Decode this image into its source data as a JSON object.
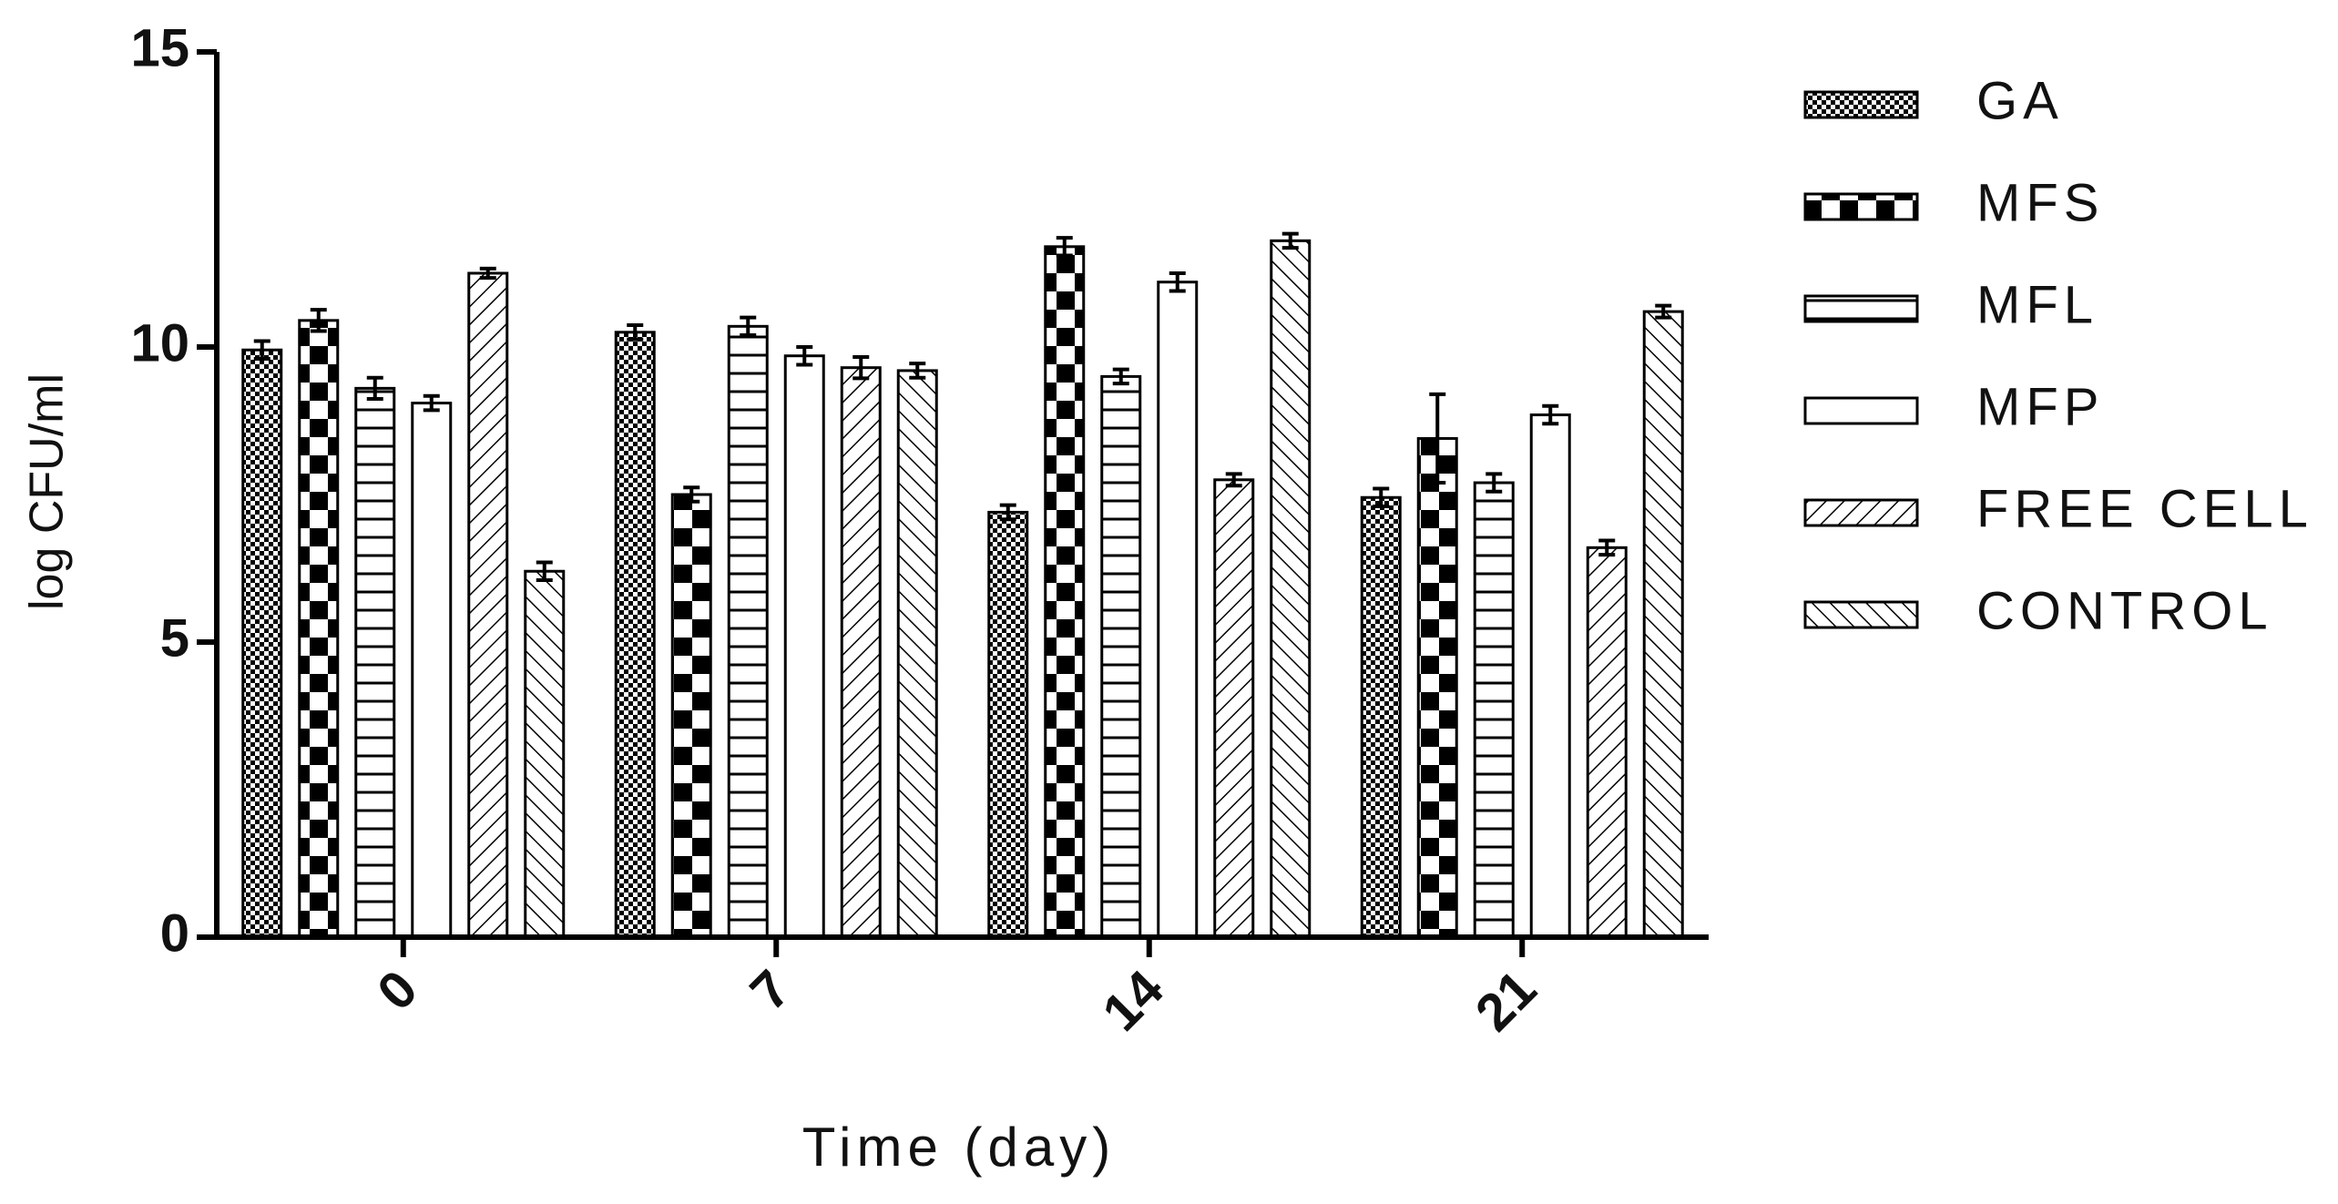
{
  "chart_data": {
    "type": "bar",
    "x_label": "Time (day)",
    "y_label": "log CFU/ml",
    "categories": [
      "0",
      "7",
      "14",
      "21"
    ],
    "series": [
      {
        "name": "GA",
        "values": [
          9.95,
          10.25,
          7.2,
          7.45
        ],
        "errors": [
          0.15,
          0.12,
          0.12,
          0.15
        ]
      },
      {
        "name": "MFS",
        "values": [
          10.45,
          7.5,
          11.7,
          8.45
        ],
        "errors": [
          0.18,
          0.12,
          0.15,
          0.75
        ]
      },
      {
        "name": "MFL",
        "values": [
          9.3,
          10.35,
          9.5,
          7.7
        ],
        "errors": [
          0.18,
          0.15,
          0.12,
          0.15
        ]
      },
      {
        "name": "MFP",
        "values": [
          9.05,
          9.85,
          11.1,
          8.85
        ],
        "errors": [
          0.12,
          0.15,
          0.15,
          0.15
        ]
      },
      {
        "name": "FREE CELL",
        "values": [
          11.25,
          9.65,
          7.75,
          6.6
        ],
        "errors": [
          0.08,
          0.18,
          0.1,
          0.12
        ]
      },
      {
        "name": "CONTROL",
        "values": [
          6.2,
          9.6,
          11.8,
          10.6
        ],
        "errors": [
          0.15,
          0.12,
          0.12,
          0.1
        ]
      }
    ],
    "ylim": [
      0,
      15
    ],
    "yticks": [
      0,
      5,
      10,
      15
    ],
    "grid": false,
    "legend": "right"
  }
}
